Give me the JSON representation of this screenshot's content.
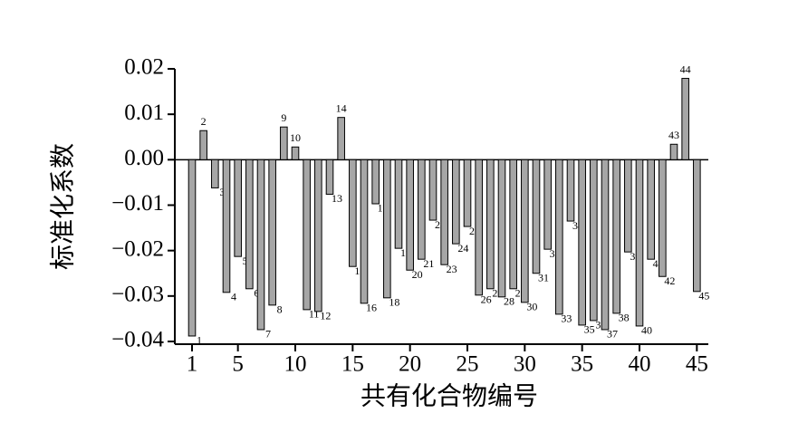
{
  "chart_data": {
    "type": "bar",
    "x_label": "共有化合物编号",
    "y_label": "标准化系数",
    "x": [
      1,
      2,
      3,
      4,
      5,
      6,
      7,
      8,
      9,
      10,
      11,
      12,
      13,
      14,
      15,
      16,
      17,
      18,
      19,
      20,
      21,
      22,
      23,
      24,
      25,
      26,
      27,
      28,
      29,
      30,
      31,
      32,
      33,
      34,
      35,
      36,
      37,
      38,
      39,
      40,
      41,
      42,
      43,
      44,
      45
    ],
    "values": [
      -0.0388,
      0.0064,
      -0.0062,
      -0.0292,
      -0.0213,
      -0.0284,
      -0.0374,
      -0.032,
      0.0072,
      0.0028,
      -0.033,
      -0.0334,
      -0.0076,
      0.0093,
      -0.0235,
      -0.0316,
      -0.0097,
      -0.0304,
      -0.0195,
      -0.0243,
      -0.0219,
      -0.0133,
      -0.0231,
      -0.0185,
      -0.0147,
      -0.0298,
      -0.0284,
      -0.0302,
      -0.0284,
      -0.0314,
      -0.025,
      -0.0197,
      -0.034,
      -0.0135,
      -0.0364,
      -0.0354,
      -0.0374,
      -0.0338,
      -0.0203,
      -0.0366,
      -0.0219,
      -0.0257,
      0.0034,
      0.0179,
      -0.029
    ],
    "color": "#a6a6a6",
    "xlim": [
      -0.5,
      46
    ],
    "xticks": [
      1,
      5,
      10,
      15,
      20,
      25,
      30,
      35,
      40,
      45
    ],
    "ylim": [
      -0.0406,
      0.02
    ],
    "yticks": [
      0.02,
      0.01,
      {
        "value": 0,
        "label": "0.00"
      },
      {
        "value": -0.01,
        "label": "−0.01"
      },
      {
        "value": -0.02,
        "label": "−0.02"
      },
      {
        "value": -0.03,
        "label": "−0.03"
      },
      {
        "value": -0.04,
        "label": "−0.04"
      }
    ],
    "grid": false
  }
}
